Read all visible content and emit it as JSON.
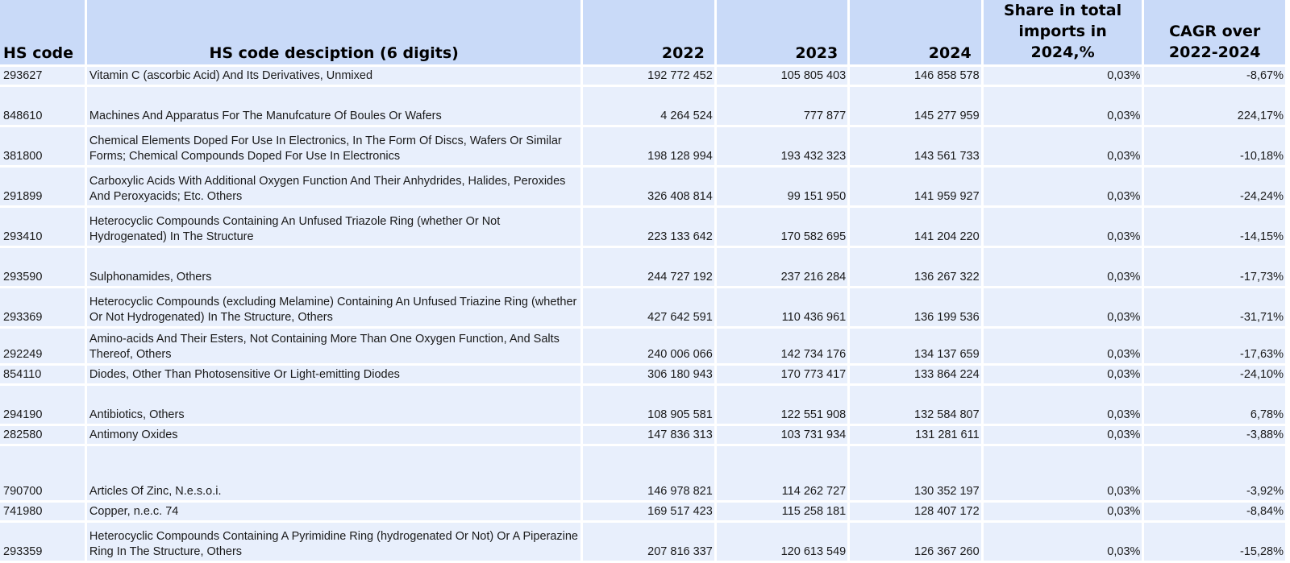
{
  "headers": {
    "code": "HS code",
    "desc": "HS code desciption (6 digits)",
    "y2022": "2022",
    "y2023": "2023",
    "y2024": "2024",
    "share": "Share in total imports in 2024,%",
    "cagr": "CAGR over 2022-2024"
  },
  "rows": [
    {
      "code": "293627",
      "desc": "Vitamin C (ascorbic Acid) And Its Derivatives, Unmixed",
      "y2022": "192 772 452",
      "y2023": "105 805 403",
      "y2024": "146 858 578",
      "share": "0,03%",
      "cagr": "-8,67%"
    },
    {
      "code": "848610",
      "desc": "Machines And Apparatus For The Manufcature Of Boules Or Wafers",
      "y2022": "4 264 524",
      "y2023": "777 877",
      "y2024": "145 277 959",
      "share": "0,03%",
      "cagr": "224,17%"
    },
    {
      "code": "381800",
      "desc": "Chemical Elements Doped For Use In Electronics, In The Form Of Discs, Wafers Or Similar Forms; Chemical Compounds Doped For Use In Electronics",
      "y2022": "198 128 994",
      "y2023": "193 432 323",
      "y2024": "143 561 733",
      "share": "0,03%",
      "cagr": "-10,18%"
    },
    {
      "code": "291899",
      "desc": "Carboxylic Acids With Additional Oxygen Function And Their Anhydrides, Halides, Peroxides And Peroxyacids; Etc. Others",
      "y2022": "326 408 814",
      "y2023": "99 151 950",
      "y2024": "141 959 927",
      "share": "0,03%",
      "cagr": "-24,24%"
    },
    {
      "code": "293410",
      "desc": "Heterocyclic Compounds Containing An Unfused Triazole Ring (whether Or Not Hydrogenated) In The Structure",
      "y2022": "223 133 642",
      "y2023": "170 582 695",
      "y2024": "141 204 220",
      "share": "0,03%",
      "cagr": "-14,15%"
    },
    {
      "code": "293590",
      "desc": "Sulphonamides, Others",
      "y2022": "244 727 192",
      "y2023": "237 216 284",
      "y2024": "136 267 322",
      "share": "0,03%",
      "cagr": "-17,73%"
    },
    {
      "code": "293369",
      "desc": "Heterocyclic Compounds (excluding Melamine) Containing An Unfused Triazine Ring (whether Or Not Hydrogenated) In The Structure, Others",
      "y2022": "427 642 591",
      "y2023": "110 436 961",
      "y2024": "136 199 536",
      "share": "0,03%",
      "cagr": "-31,71%"
    },
    {
      "code": "292249",
      "desc": "Amino-acids And Their Esters, Not Containing More Than One Oxygen Function, And Salts Thereof, Others",
      "y2022": "240 006 066",
      "y2023": "142 734 176",
      "y2024": "134 137 659",
      "share": "0,03%",
      "cagr": "-17,63%"
    },
    {
      "code": "854110",
      "desc": "Diodes, Other Than Photosensitive Or Light-emitting Diodes",
      "y2022": "306 180 943",
      "y2023": "170 773 417",
      "y2024": "133 864 224",
      "share": "0,03%",
      "cagr": "-24,10%"
    },
    {
      "code": "294190",
      "desc": "Antibiotics, Others",
      "y2022": "108 905 581",
      "y2023": "122 551 908",
      "y2024": "132 584 807",
      "share": "0,03%",
      "cagr": "6,78%"
    },
    {
      "code": "282580",
      "desc": "Antimony Oxides",
      "y2022": "147 836 313",
      "y2023": "103 731 934",
      "y2024": "131 281 611",
      "share": "0,03%",
      "cagr": "-3,88%"
    },
    {
      "code": "790700",
      "desc": "Articles Of Zinc, N.e.s.o.i.",
      "y2022": "146 978 821",
      "y2023": "114 262 727",
      "y2024": "130 352 197",
      "share": "0,03%",
      "cagr": "-3,92%"
    },
    {
      "code": "741980",
      "desc": "Copper, n.e.c. 74",
      "y2022": "169 517 423",
      "y2023": "115 258 181",
      "y2024": "128 407 172",
      "share": "0,03%",
      "cagr": "-8,84%"
    },
    {
      "code": "293359",
      "desc": "Heterocyclic Compounds Containing A Pyrimidine Ring (hydrogenated Or Not) Or A Piperazine Ring In The Structure, Others",
      "y2022": "207 816 337",
      "y2023": "120 613 549",
      "y2024": "126 367 260",
      "share": "0,03%",
      "cagr": "-15,28%"
    }
  ]
}
